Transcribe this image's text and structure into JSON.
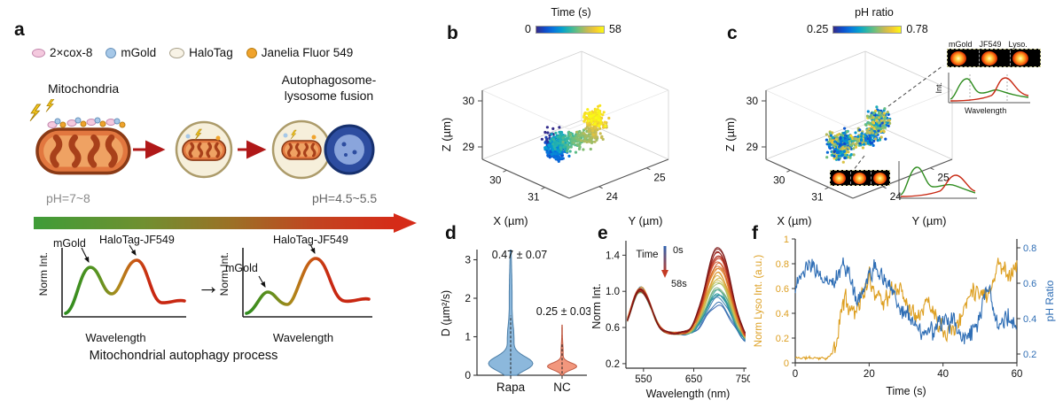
{
  "figure": {
    "panel_labels": {
      "a": "a",
      "b": "b",
      "c": "c",
      "d": "d",
      "e": "e",
      "f": "f"
    },
    "panel_a": {
      "legend": [
        {
          "label": "2×cox-8"
        },
        {
          "label": "mGold"
        },
        {
          "label": "HaloTag"
        },
        {
          "label": "Janelia Fluor 549"
        }
      ],
      "stage1": "Mitochondria",
      "stage3_line1": "Autophagosome-",
      "stage3_line2": "lysosome fusion",
      "ph_start": "pH=7~8",
      "ph_end": "pH=4.5~5.5",
      "spectrum_ylabel": "Norm Int.",
      "spectrum_xlabel": "Wavelength",
      "peak_label_mgold": "mGold",
      "peak_label_halotag": "HaloTag-JF549",
      "transition_arrow": "→",
      "caption": "Mitochondrial autophagy process"
    },
    "panel_c_insets": {
      "cell_labels": [
        "mGold",
        "JF549",
        "Lyso."
      ],
      "spectrum_ylabel": "Int.",
      "spectrum_xlabel": "Wavelength"
    }
  },
  "chart_data": [
    {
      "id": "b",
      "type": "scatter",
      "subtype": "3d-trajectory",
      "colorbar": {
        "title": "Time (s)",
        "min": "0",
        "max": "58",
        "colormap": "parula"
      },
      "axes": {
        "z": {
          "label": "Z (µm)",
          "ticks": [
            "30",
            "29"
          ]
        },
        "x": {
          "label": "X (µm)",
          "ticks": [
            "30",
            "31"
          ]
        },
        "y": {
          "label": "Y (µm)",
          "ticks": [
            "25",
            "24"
          ]
        }
      },
      "xlim": [
        30,
        31
      ],
      "ylim": [
        24,
        25
      ],
      "zlim": [
        29,
        30
      ],
      "description": "3D single-mitochondrion trajectory over 0-58 s, points colored by time; dense cluster about 1 µm wide centered near X 30.5, Y 24.5, Z 29.5 µm"
    },
    {
      "id": "c",
      "type": "scatter",
      "subtype": "3d-trajectory",
      "colorbar": {
        "title": "pH ratio",
        "min": "0.25",
        "max": "0.78",
        "colormap": "parula"
      },
      "axes": {
        "z": {
          "label": "Z (µm)",
          "ticks": [
            "30",
            "29"
          ]
        },
        "x": {
          "label": "X (µm)",
          "ticks": [
            "30",
            "31"
          ]
        },
        "y": {
          "label": "Y (µm)",
          "ticks": [
            "25",
            "24"
          ]
        }
      },
      "xlim": [
        30,
        31
      ],
      "ylim": [
        24,
        25
      ],
      "zlim": [
        29,
        30
      ],
      "description": "Same trajectory colored by pH ratio 0.25-0.78 with fluorescence-strip and spectrum insets (mGold, JF549, Lyso. channels)"
    },
    {
      "id": "d",
      "type": "violin",
      "ylabel": "D (µm²/s)",
      "yticks": [
        "0",
        "1",
        "2",
        "3"
      ],
      "ylim": [
        0,
        3.4
      ],
      "categories": [
        "Rapa",
        "NC"
      ],
      "annotations": [
        "0.47 ± 0.07",
        "0.25 ± 0.03"
      ],
      "series": [
        {
          "name": "Rapa",
          "mean": 0.47,
          "sem": 0.07,
          "density_peak_at": 0.3,
          "range": [
            0,
            3.2
          ],
          "color": "#8cb8dc"
        },
        {
          "name": "NC",
          "mean": 0.25,
          "sem": 0.03,
          "density_peak_at": 0.22,
          "range": [
            0,
            1.3
          ],
          "color": "#f2977d"
        }
      ]
    },
    {
      "id": "e",
      "type": "line",
      "xlabel": "Wavelength (nm)",
      "ylabel": "Norm Int.",
      "xticks": [
        "550",
        "650",
        "750"
      ],
      "yticks": [
        "0.2",
        "0.6",
        "1.0",
        "1.4"
      ],
      "xlim": [
        515,
        755
      ],
      "ylim": [
        0.15,
        1.56
      ],
      "time_label": "Time",
      "time_start": "0s",
      "time_end": "58s",
      "n_curves": 28,
      "description": "Emission spectra over 0-58 s: constant peak near 545 nm (~1.0), dip near 610 nm (~0.55), long-wavelength peak near 700 nm growing from ~0.9 to ~1.45; curves colored blue (0 s) to dark red (58 s)"
    },
    {
      "id": "f",
      "type": "dual-line",
      "xlabel": "Time (s)",
      "xticks": [
        "0",
        "20",
        "40",
        "60"
      ],
      "xlim": [
        0,
        60
      ],
      "left": {
        "label": "Norm Lyso Int. (a.u.)",
        "color": "#dd9f21",
        "ticks": [
          "1",
          "0.8",
          "0.6",
          "0.4",
          "0.2",
          "0"
        ],
        "lim": [
          0,
          1
        ]
      },
      "right": {
        "label": "pH Ratio",
        "color": "#2f6eb5",
        "ticks": [
          "0.8",
          "0.6",
          "0.4",
          "0.2"
        ],
        "lim": [
          0.15,
          0.85
        ]
      },
      "description": "Normalized lysosome intensity (orange) near 0 before ~10 s then fluctuates 0.3-0.9; pH ratio (blue) fluctuates 0.5-0.8 early and declines to ~0.3-0.4 after ~30 s"
    }
  ]
}
